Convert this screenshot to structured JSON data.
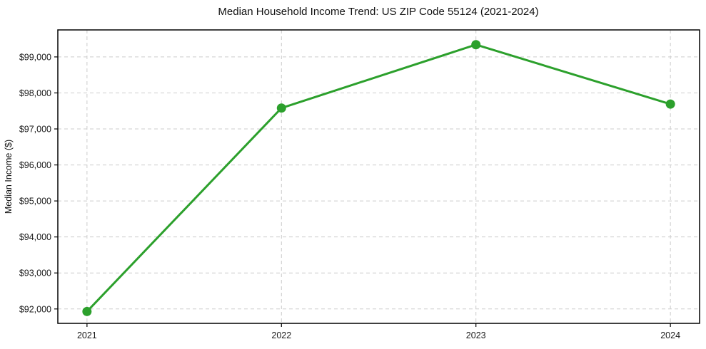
{
  "chart_data": {
    "type": "line",
    "title": "Median Household Income Trend: US ZIP Code 55124 (2021-2024)",
    "xlabel": "",
    "ylabel": "Median Income ($)",
    "x": [
      2021,
      2022,
      2023,
      2024
    ],
    "xtick_labels": [
      "2021",
      "2022",
      "2023",
      "2024"
    ],
    "yticks": [
      92000,
      93000,
      94000,
      95000,
      96000,
      97000,
      98000,
      99000
    ],
    "ytick_labels": [
      "$92,000",
      "$93,000",
      "$94,000",
      "$95,000",
      "$96,000",
      "$97,000",
      "$98,000",
      "$99,000"
    ],
    "xlim": [
      2020.85,
      2024.15
    ],
    "ylim": [
      91600,
      99750
    ],
    "grid": true,
    "grid_style": "dashed",
    "legend_position": "none",
    "series": [
      {
        "name": "median_income",
        "values": [
          91930,
          97580,
          99340,
          97690
        ],
        "color": "#2ca02c",
        "marker": "circle",
        "marker_radius": 6.5,
        "line_width": 3
      }
    ],
    "colors": {
      "line": "#2ca02c",
      "grid": "#cccccc",
      "axis": "#000000",
      "background": "#ffffff"
    }
  }
}
